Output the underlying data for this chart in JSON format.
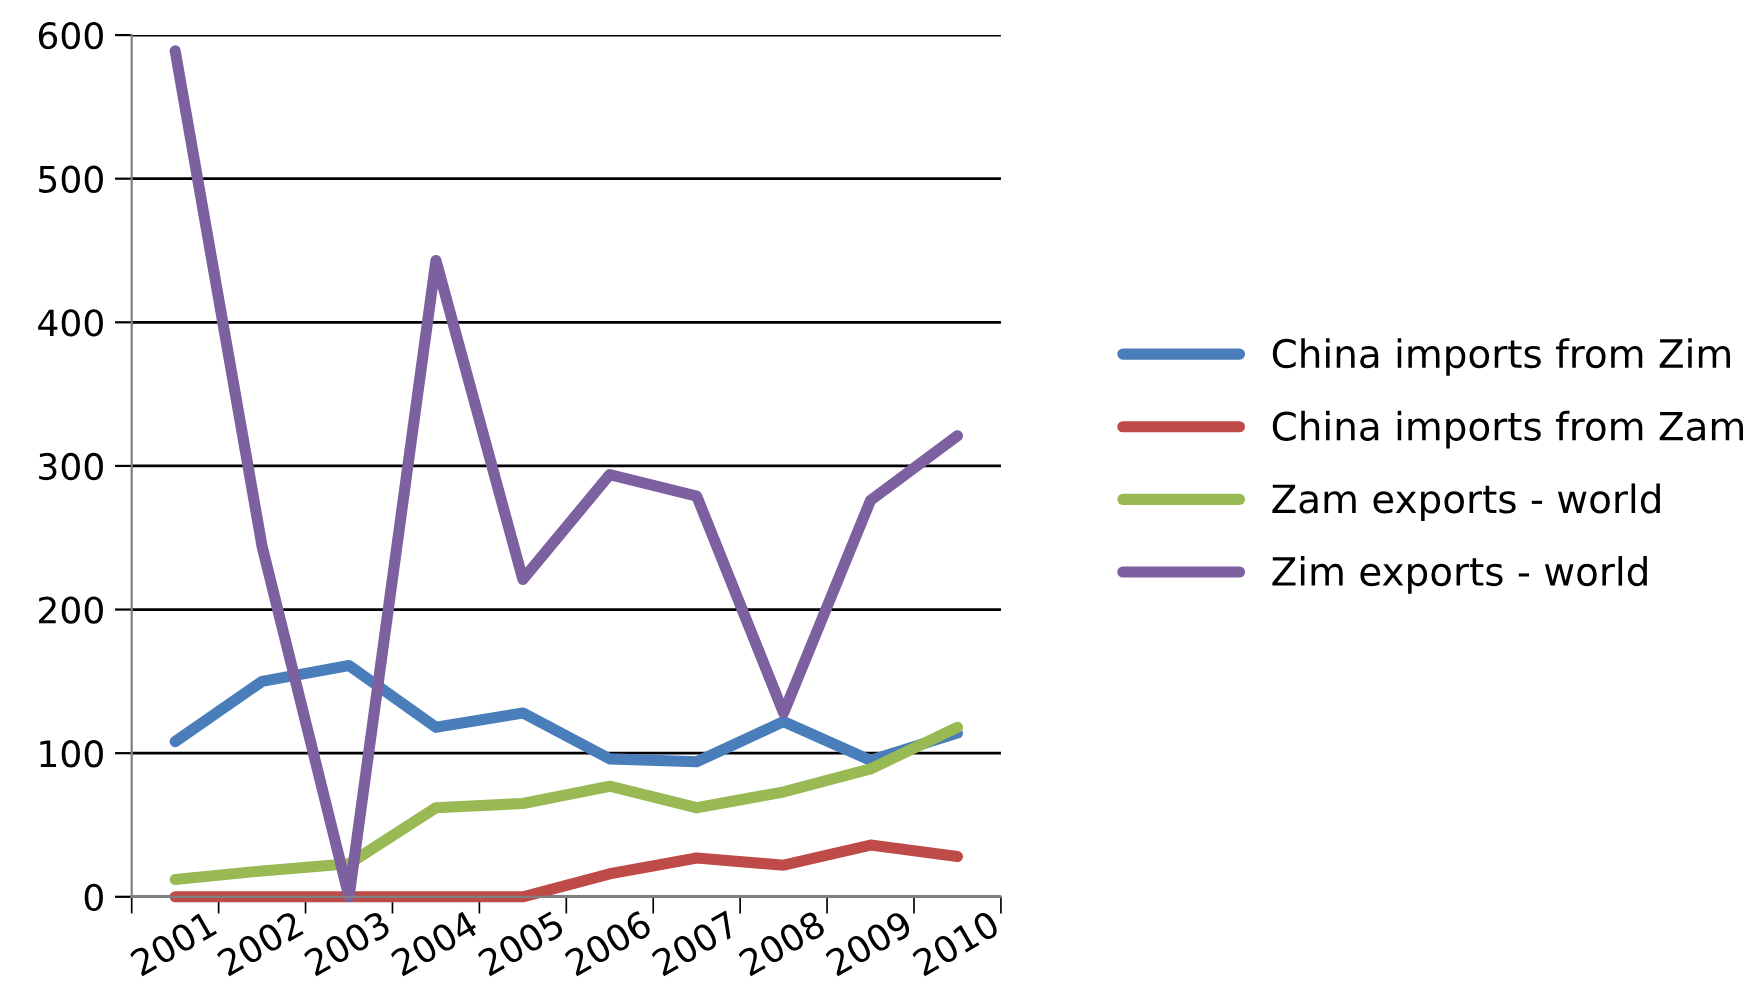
{
  "chart_data": {
    "type": "line",
    "categories": [
      "2001",
      "2002",
      "2003",
      "2004",
      "2005",
      "2006",
      "2007",
      "2008",
      "2009",
      "2010"
    ],
    "series": [
      {
        "name": "China imports from Zim",
        "color": "#4a7ebb",
        "values": [
          108,
          150,
          161,
          118,
          128,
          96,
          94,
          122,
          95,
          114
        ]
      },
      {
        "name": "China imports from Zam",
        "color": "#be4b48",
        "values": [
          0,
          0,
          0,
          0,
          0,
          16,
          27,
          22,
          36,
          28
        ]
      },
      {
        "name": "Zam exports - world",
        "color": "#98b954",
        "values": [
          12,
          18,
          23,
          62,
          65,
          77,
          62,
          73,
          89,
          118
        ]
      },
      {
        "name": "Zim exports - world",
        "color": "#7d60a0",
        "values": [
          589,
          244,
          0,
          443,
          221,
          294,
          279,
          128,
          276,
          321
        ]
      }
    ],
    "ylim": [
      0,
      600
    ],
    "yticks": [
      0,
      100,
      200,
      300,
      400,
      500,
      600
    ],
    "grid": "y",
    "legend": "right",
    "marker": "none",
    "line_style": "solid"
  }
}
